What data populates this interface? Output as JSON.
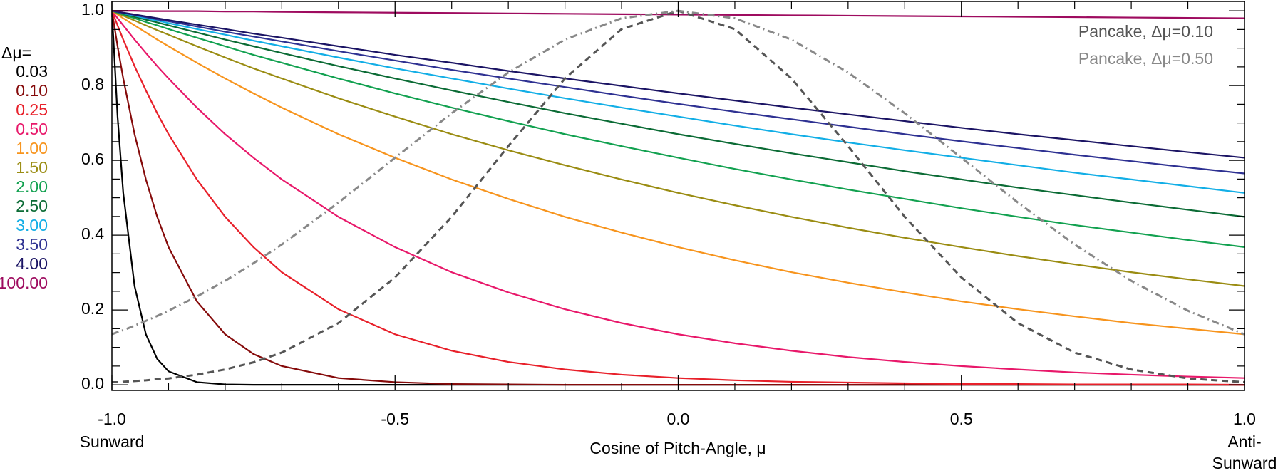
{
  "chart_data": {
    "type": "line",
    "xlabel": "Cosine of Pitch-Angle, μ",
    "legend_title": "Δμ=",
    "annotations": [
      "Sunward",
      "Anti-",
      "Sunward"
    ],
    "xlim": [
      -1,
      1
    ],
    "ylim": [
      -0.015,
      1.025
    ],
    "xticks": [
      {
        "value": -1,
        "label": "-1.0"
      },
      -0.5,
      {
        "value": 0,
        "label": "0.0"
      },
      0.5,
      {
        "value": 1,
        "label": "1.0"
      }
    ],
    "yticks": [
      {
        "value": 0,
        "label": "0.0"
      },
      0.2,
      0.4,
      0.6,
      0.8,
      {
        "value": 1,
        "label": "1.0"
      }
    ],
    "xminorticks": [
      -0.9,
      -0.8,
      -0.7,
      -0.6,
      -0.4,
      -0.3,
      -0.2,
      -0.1,
      0.1,
      0.2,
      0.3,
      0.4,
      0.6,
      0.7,
      0.8,
      0.9
    ],
    "yminorticks": [
      0.05,
      0.1,
      0.15,
      0.25,
      0.3,
      0.35,
      0.45,
      0.5,
      0.55,
      0.65,
      0.7,
      0.75,
      0.85,
      0.9,
      0.95
    ],
    "x": [
      -1,
      -0.99,
      -0.98,
      -0.96,
      -0.94,
      -0.92,
      -0.9,
      -0.85,
      -0.8,
      -0.75,
      -0.7,
      -0.6,
      -0.5,
      -0.4,
      -0.3,
      -0.2,
      -0.1,
      0,
      0.1,
      0.2,
      0.3,
      0.4,
      0.5,
      0.6,
      0.7,
      0.8,
      0.9,
      1
    ],
    "series": [
      {
        "name": "0.03",
        "color": "#000000",
        "values": [
          1,
          0.717,
          0.513,
          0.264,
          0.135,
          0.069,
          0.036,
          0.007,
          0.001,
          0,
          0,
          0,
          0,
          0,
          0,
          0,
          0,
          0,
          0,
          0,
          0,
          0,
          0,
          0,
          0,
          0,
          0,
          0
        ]
      },
      {
        "name": "0.10",
        "color": "#850a0a",
        "values": [
          1,
          0.905,
          0.819,
          0.67,
          0.549,
          0.449,
          0.368,
          0.223,
          0.135,
          0.082,
          0.05,
          0.018,
          0.007,
          0.002,
          0.001,
          0,
          0,
          0,
          0,
          0,
          0,
          0,
          0,
          0,
          0,
          0,
          0,
          0
        ]
      },
      {
        "name": "0.25",
        "color": "#e8202a",
        "values": [
          1,
          0.961,
          0.923,
          0.852,
          0.787,
          0.726,
          0.67,
          0.549,
          0.449,
          0.368,
          0.301,
          0.202,
          0.135,
          0.091,
          0.061,
          0.041,
          0.027,
          0.018,
          0.012,
          0.008,
          0.006,
          0.004,
          0.002,
          0.002,
          0.001,
          0.001,
          0.001,
          0
        ]
      },
      {
        "name": "0.50",
        "color": "#e8186a",
        "values": [
          1,
          0.98,
          0.961,
          0.923,
          0.887,
          0.852,
          0.819,
          0.741,
          0.67,
          0.607,
          0.549,
          0.449,
          0.368,
          0.301,
          0.247,
          0.202,
          0.165,
          0.135,
          0.111,
          0.091,
          0.074,
          0.061,
          0.05,
          0.041,
          0.033,
          0.027,
          0.022,
          0.018
        ]
      },
      {
        "name": "1.00",
        "color": "#f7941d",
        "values": [
          1,
          0.99,
          0.98,
          0.961,
          0.942,
          0.923,
          0.905,
          0.861,
          0.819,
          0.779,
          0.741,
          0.67,
          0.607,
          0.549,
          0.497,
          0.449,
          0.407,
          0.368,
          0.333,
          0.301,
          0.273,
          0.247,
          0.223,
          0.202,
          0.183,
          0.165,
          0.15,
          0.135
        ]
      },
      {
        "name": "1.50",
        "color": "#9a8c12",
        "values": [
          1,
          0.993,
          0.987,
          0.974,
          0.961,
          0.948,
          0.936,
          0.905,
          0.875,
          0.846,
          0.819,
          0.766,
          0.717,
          0.67,
          0.627,
          0.587,
          0.549,
          0.513,
          0.48,
          0.449,
          0.42,
          0.393,
          0.368,
          0.344,
          0.322,
          0.301,
          0.282,
          0.264
        ]
      },
      {
        "name": "2.00",
        "color": "#12a150",
        "values": [
          1,
          0.995,
          0.99,
          0.98,
          0.97,
          0.961,
          0.951,
          0.928,
          0.905,
          0.882,
          0.861,
          0.819,
          0.779,
          0.741,
          0.705,
          0.67,
          0.638,
          0.607,
          0.577,
          0.549,
          0.522,
          0.497,
          0.472,
          0.449,
          0.427,
          0.407,
          0.387,
          0.368
        ]
      },
      {
        "name": "2.50",
        "color": "#0b6b35",
        "values": [
          1,
          0.996,
          0.992,
          0.984,
          0.976,
          0.969,
          0.961,
          0.942,
          0.923,
          0.905,
          0.887,
          0.852,
          0.819,
          0.787,
          0.756,
          0.726,
          0.698,
          0.67,
          0.644,
          0.619,
          0.595,
          0.571,
          0.549,
          0.527,
          0.507,
          0.487,
          0.468,
          0.449
        ]
      },
      {
        "name": "3.00",
        "color": "#12aee6",
        "values": [
          1,
          0.997,
          0.993,
          0.987,
          0.98,
          0.974,
          0.967,
          0.951,
          0.936,
          0.92,
          0.905,
          0.875,
          0.846,
          0.819,
          0.792,
          0.766,
          0.741,
          0.717,
          0.693,
          0.67,
          0.648,
          0.627,
          0.607,
          0.587,
          0.567,
          0.549,
          0.531,
          0.513
        ]
      },
      {
        "name": "3.50",
        "color": "#2e3192",
        "values": [
          1,
          0.997,
          0.994,
          0.989,
          0.983,
          0.977,
          0.972,
          0.958,
          0.944,
          0.931,
          0.918,
          0.892,
          0.867,
          0.842,
          0.819,
          0.796,
          0.773,
          0.751,
          0.73,
          0.71,
          0.69,
          0.67,
          0.651,
          0.633,
          0.615,
          0.598,
          0.581,
          0.565
        ]
      },
      {
        "name": "4.00",
        "color": "#1b1464",
        "values": [
          1,
          0.998,
          0.995,
          0.99,
          0.985,
          0.98,
          0.975,
          0.963,
          0.951,
          0.939,
          0.928,
          0.905,
          0.882,
          0.861,
          0.839,
          0.819,
          0.799,
          0.779,
          0.76,
          0.741,
          0.723,
          0.705,
          0.687,
          0.67,
          0.654,
          0.638,
          0.622,
          0.607
        ]
      },
      {
        "name": "100.00",
        "color": "#9e0b5f",
        "values": [
          1,
          1,
          1,
          1,
          0.999,
          0.999,
          0.999,
          0.999,
          0.998,
          0.998,
          0.997,
          0.996,
          0.995,
          0.994,
          0.993,
          0.992,
          0.991,
          0.99,
          0.989,
          0.988,
          0.987,
          0.986,
          0.985,
          0.984,
          0.983,
          0.982,
          0.981,
          0.98
        ]
      },
      {
        "name": "Pancake, Δμ=0.10",
        "color": "#555555",
        "linestyle": "dashed",
        "values": [
          0.007,
          0.007,
          0.008,
          0.01,
          0.012,
          0.015,
          0.017,
          0.027,
          0.041,
          0.06,
          0.086,
          0.165,
          0.287,
          0.449,
          0.638,
          0.819,
          0.951,
          1,
          0.951,
          0.819,
          0.638,
          0.449,
          0.287,
          0.165,
          0.086,
          0.041,
          0.017,
          0.007
        ]
      },
      {
        "name": "Pancake, Δμ=0.50",
        "color": "#888888",
        "linestyle": "dashdot",
        "values": [
          0.135,
          0.141,
          0.146,
          0.158,
          0.171,
          0.184,
          0.198,
          0.236,
          0.278,
          0.325,
          0.375,
          0.487,
          0.607,
          0.726,
          0.835,
          0.923,
          0.98,
          1,
          0.98,
          0.923,
          0.835,
          0.726,
          0.607,
          0.487,
          0.375,
          0.278,
          0.198,
          0.135
        ]
      }
    ]
  }
}
